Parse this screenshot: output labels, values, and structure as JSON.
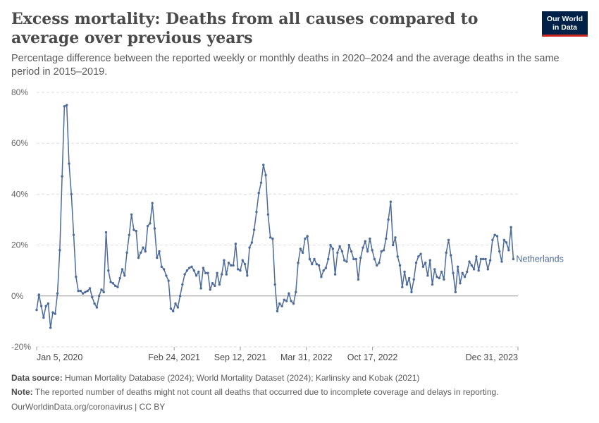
{
  "header": {
    "title": "Excess mortality: Deaths from all causes compared to average over previous years",
    "subtitle": "Percentage difference between the reported weekly or monthly deaths in 2020–2024 and the average deaths in the same period in 2015–2019."
  },
  "logo": {
    "line1": "Our World",
    "line2": "in Data"
  },
  "footer": {
    "source_label": "Data source:",
    "source_text": "Human Mortality Database (2024); World Mortality Dataset (2024); Karlinsky and Kobak (2021)",
    "note_label": "Note:",
    "note_text": "The reported number of deaths might not count all deaths that occurred due to incomplete coverage and delays in reporting.",
    "url": "OurWorldinData.org/coronavirus | CC BY"
  },
  "colors": {
    "series": "#4c6a9c",
    "grid": "#dddddd",
    "zero_line": "#999999",
    "title": "#4a4a4a"
  },
  "chart_data": {
    "type": "line",
    "title": "Excess mortality: Deaths from all causes compared to average over previous years",
    "y_unit": "%",
    "ylim": [
      -20,
      80
    ],
    "y_ticks": [
      -20,
      0,
      20,
      40,
      60,
      80
    ],
    "y_tick_labels": [
      "-20%",
      "0%",
      "20%",
      "40%",
      "60%",
      "80%"
    ],
    "xlim": [
      "2020-01-05",
      "2023-12-31"
    ],
    "x_ticks": [
      "2020-01-05",
      "2021-02-24",
      "2021-09-12",
      "2022-03-31",
      "2022-10-17",
      "2023-12-31"
    ],
    "x_tick_labels": [
      "Jan 5, 2020",
      "Feb 24, 2021",
      "Sep 12, 2021",
      "Mar 31, 2022",
      "Oct 17, 2022",
      "Dec 31, 2023"
    ],
    "grid": "horizontal dashed",
    "markers": true,
    "series": [
      {
        "name": "Netherlands",
        "x_start": "2020-01-05",
        "x_step": "weekly",
        "values": [
          -5.5,
          0.5,
          -4,
          -8.5,
          -4,
          -3,
          -12.5,
          -6.5,
          -7,
          1,
          18,
          47,
          74.5,
          75,
          52,
          40,
          24,
          7.5,
          2,
          2,
          1,
          1.5,
          2,
          3,
          -0.5,
          -3,
          -4.5,
          0,
          2.5,
          1.5,
          25,
          10,
          5.5,
          5,
          4,
          3.5,
          7,
          10.5,
          8,
          17,
          24,
          32,
          26,
          25.5,
          15,
          17,
          19,
          17.5,
          27.5,
          28.5,
          36.5,
          26.5,
          15,
          17.5,
          11.5,
          10.5,
          8,
          6,
          -5,
          -6,
          -3,
          -4.5,
          0,
          4.5,
          8.5,
          10,
          11,
          11.5,
          10,
          8,
          9.5,
          3,
          11,
          9,
          9,
          2.5,
          5,
          4,
          9,
          4.5,
          8.5,
          14,
          8.5,
          13,
          12,
          12,
          20.5,
          10.5,
          10,
          14,
          12.5,
          8,
          19,
          21,
          26,
          33,
          40.5,
          44.5,
          51.5,
          47.5,
          32,
          23,
          22.5,
          4.5,
          -6,
          -3,
          -4,
          -1.5,
          -2,
          1,
          -2,
          -3,
          1.5,
          13,
          18.5,
          17,
          22.5,
          23.5,
          14.5,
          12.5,
          14.5,
          12.5,
          12,
          7.5,
          10,
          11,
          14.5,
          20,
          18.5,
          8.5,
          17,
          19.5,
          17.5,
          14,
          13.5,
          20,
          17.5,
          14.5,
          14.5,
          6.5,
          15,
          19,
          21.5,
          17.5,
          22.5,
          18,
          14.5,
          12,
          13,
          17.5,
          18,
          22.5,
          30,
          37,
          20,
          23,
          15.5,
          12,
          3.5,
          9.5,
          4.5,
          7,
          1.5,
          6.5,
          13,
          15.5,
          16.5,
          11.5,
          13,
          8,
          14,
          4.5,
          10.5,
          7.5,
          7,
          9.5,
          6.5,
          17,
          22,
          16,
          9,
          1.5,
          11.5,
          5,
          9,
          7.5,
          9.5,
          13.5,
          12,
          10.5,
          15.5,
          10,
          14.5,
          14.5,
          14.5,
          10.5,
          14,
          22,
          24,
          23.5,
          17.5,
          13.5,
          22,
          21,
          18,
          27,
          14.5
        ]
      }
    ]
  }
}
